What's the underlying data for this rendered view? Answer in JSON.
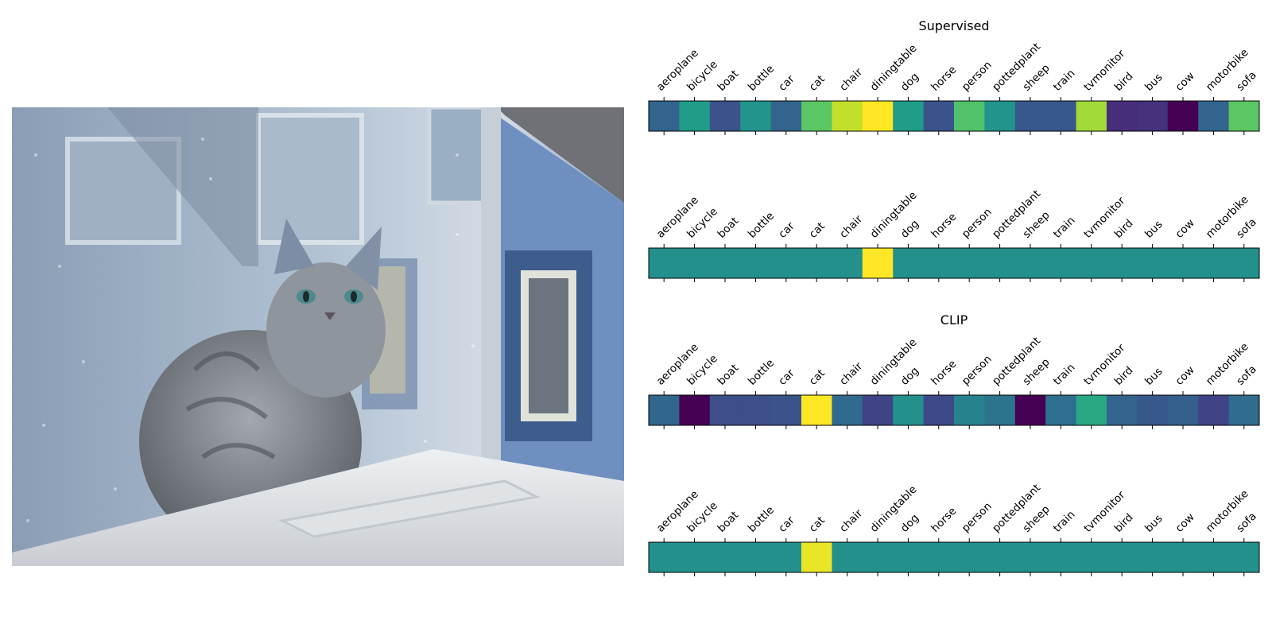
{
  "chart_data": [
    {
      "type": "heatmap",
      "title": "Supervised",
      "categories": [
        "aeroplane",
        "bicycle",
        "boat",
        "bottle",
        "car",
        "cat",
        "chair",
        "diningtable",
        "dog",
        "horse",
        "person",
        "pottedplant",
        "sheep",
        "train",
        "tvmonitor",
        "bird",
        "bus",
        "cow",
        "motorbike",
        "sofa"
      ],
      "values": [
        0.32,
        0.55,
        0.25,
        0.52,
        0.32,
        0.74,
        0.91,
        1.0,
        0.55,
        0.26,
        0.72,
        0.52,
        0.27,
        0.27,
        0.86,
        0.13,
        0.14,
        0.0,
        0.32,
        0.74
      ],
      "colormap": "viridis"
    },
    {
      "type": "heatmap",
      "title": "",
      "categories": [
        "aeroplane",
        "bicycle",
        "boat",
        "bottle",
        "car",
        "cat",
        "chair",
        "diningtable",
        "dog",
        "horse",
        "person",
        "pottedplant",
        "sheep",
        "train",
        "tvmonitor",
        "bird",
        "bus",
        "cow",
        "motorbike",
        "sofa"
      ],
      "values": [
        0.5,
        0.5,
        0.5,
        0.5,
        0.5,
        0.5,
        0.5,
        1.0,
        0.5,
        0.5,
        0.5,
        0.5,
        0.5,
        0.5,
        0.5,
        0.5,
        0.5,
        0.5,
        0.5,
        0.5
      ],
      "colormap": "viridis"
    },
    {
      "type": "heatmap",
      "title": "CLIP",
      "categories": [
        "aeroplane",
        "bicycle",
        "boat",
        "bottle",
        "car",
        "cat",
        "chair",
        "diningtable",
        "dog",
        "horse",
        "person",
        "pottedplant",
        "sheep",
        "train",
        "tvmonitor",
        "bird",
        "bus",
        "cow",
        "motorbike",
        "sofa"
      ],
      "values": [
        0.33,
        0.0,
        0.24,
        0.24,
        0.26,
        1.0,
        0.34,
        0.2,
        0.5,
        0.22,
        0.45,
        0.38,
        0.0,
        0.36,
        0.6,
        0.32,
        0.27,
        0.3,
        0.2,
        0.35
      ],
      "colormap": "viridis"
    },
    {
      "type": "heatmap",
      "title": "",
      "categories": [
        "aeroplane",
        "bicycle",
        "boat",
        "bottle",
        "car",
        "cat",
        "chair",
        "diningtable",
        "dog",
        "horse",
        "person",
        "pottedplant",
        "sheep",
        "train",
        "tvmonitor",
        "bird",
        "bus",
        "cow",
        "motorbike",
        "sofa"
      ],
      "values": [
        0.5,
        0.5,
        0.5,
        0.5,
        0.5,
        0.97,
        0.5,
        0.5,
        0.5,
        0.5,
        0.5,
        0.5,
        0.5,
        0.5,
        0.5,
        0.5,
        0.5,
        0.5,
        0.5,
        0.5
      ],
      "colormap": "viridis"
    }
  ],
  "photo": {
    "subject": "grey tabby cat on a window ledge",
    "colors": {
      "sky": "#b9c9d8",
      "house": "#7d93b3",
      "trim": "#4a6591",
      "cat": "#8a8f97",
      "ledge": "#e6e9ec",
      "roof": "#6f7176"
    }
  }
}
